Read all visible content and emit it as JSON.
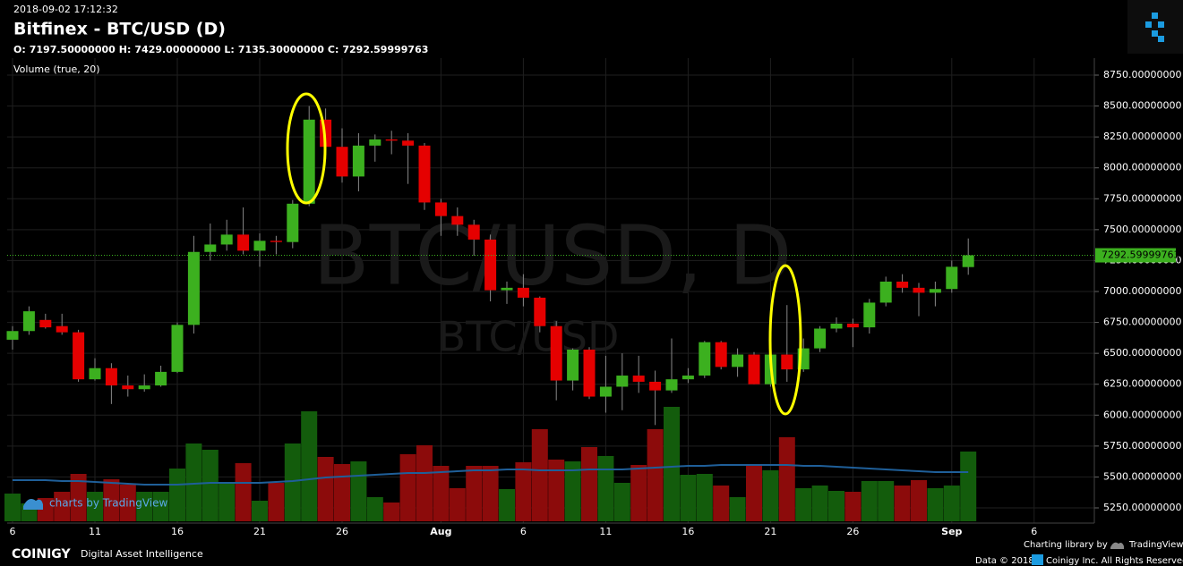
{
  "header": {
    "timestamp": "2018-09-02 17:12:32",
    "title": "Bitfinex - BTC/USD (D)",
    "ohlc": [
      {
        "key": "O:",
        "label": "7197.50000000"
      },
      {
        "key": "H:",
        "label": "7429.00000000"
      },
      {
        "key": "L:",
        "label": "7135.30000000"
      },
      {
        "key": "C:",
        "label": "7292.59999763"
      }
    ],
    "volume_label": "Volume (true, 20)"
  },
  "chart_data": {
    "type": "candlestick",
    "watermark": "BTC/USD, D",
    "watermark_sub": "BTC/USD",
    "categories": [
      "6",
      null,
      null,
      null,
      null,
      "11",
      null,
      null,
      null,
      null,
      "16",
      null,
      null,
      null,
      null,
      "21",
      null,
      null,
      null,
      null,
      "26",
      null,
      null,
      null,
      null,
      null,
      "Aug",
      null,
      null,
      null,
      null,
      "6",
      null,
      null,
      null,
      null,
      "11",
      null,
      null,
      null,
      null,
      "16",
      null,
      null,
      null,
      null,
      "21",
      null,
      null,
      null,
      null,
      "26",
      null,
      null,
      null,
      null,
      null,
      "Sep",
      null,
      null,
      null,
      null,
      "6"
    ],
    "open": [
      6610,
      6680,
      6770,
      6720,
      6670,
      6290,
      6380,
      6240,
      6210,
      6240,
      6350,
      6730,
      7320,
      7380,
      7460,
      7330,
      7410,
      7400,
      7710,
      8390,
      8170,
      7930,
      8180,
      8230,
      8220,
      8180,
      7720,
      7610,
      7540,
      7420,
      7010,
      7030,
      6950,
      6720,
      6280,
      6530,
      6150,
      6230,
      6320,
      6270,
      6200,
      6290,
      6320,
      6590,
      6390,
      6490,
      6250,
      6490,
      6370,
      6540,
      6700,
      6740,
      6710,
      6910,
      7080,
      7030,
      6990,
      7020,
      7197.5,
      null,
      null,
      null,
      null
    ],
    "high": [
      6720,
      6880,
      6820,
      6820,
      6690,
      6460,
      6420,
      6320,
      6330,
      6400,
      6750,
      7450,
      7550,
      7580,
      7680,
      7470,
      7450,
      7740,
      8500,
      8480,
      8320,
      8280,
      8270,
      8300,
      8280,
      8200,
      7750,
      7680,
      7580,
      7460,
      7080,
      7140,
      6960,
      6760,
      6540,
      6550,
      6480,
      6500,
      6480,
      6360,
      6620,
      6380,
      6600,
      6600,
      6540,
      6510,
      6520,
      6890,
      6620,
      6720,
      6790,
      6780,
      6940,
      7120,
      7140,
      7070,
      7080,
      7250,
      7429,
      null,
      null,
      null,
      null
    ],
    "low": [
      6530,
      6650,
      6700,
      6650,
      6270,
      6280,
      6090,
      6150,
      6190,
      6230,
      6340,
      6660,
      7250,
      7330,
      7300,
      7200,
      7300,
      7350,
      7690,
      8070,
      7880,
      7810,
      8050,
      8110,
      7870,
      7660,
      7450,
      7450,
      7290,
      6920,
      6900,
      6880,
      6670,
      6120,
      6200,
      6130,
      6020,
      6040,
      6180,
      5920,
      6180,
      6260,
      6300,
      6370,
      6310,
      6250,
      6230,
      6270,
      6350,
      6510,
      6670,
      6550,
      6660,
      6880,
      6990,
      6800,
      6880,
      6990,
      7135.3,
      null,
      null,
      null,
      null
    ],
    "close": [
      6680,
      6840,
      6710,
      6670,
      6290,
      6380,
      6240,
      6210,
      6240,
      6350,
      6730,
      7320,
      7380,
      7460,
      7330,
      7410,
      7400,
      7710,
      8390,
      8170,
      7930,
      8180,
      8230,
      8220,
      8180,
      7720,
      7610,
      7540,
      7420,
      7010,
      7030,
      6950,
      6720,
      6280,
      6530,
      6150,
      6230,
      6320,
      6270,
      6200,
      6290,
      6320,
      6590,
      6390,
      6490,
      6250,
      6490,
      6370,
      6540,
      6700,
      6740,
      6710,
      6910,
      7080,
      7030,
      6990,
      7020,
      7200,
      7292.59999763,
      null,
      null,
      null,
      null
    ],
    "volume": [
      31,
      20,
      26,
      33,
      53,
      33,
      47,
      41,
      33,
      33,
      59,
      87,
      80,
      43,
      65,
      23,
      43,
      87,
      123,
      72,
      64,
      67,
      27,
      21,
      75,
      85,
      62,
      37,
      62,
      62,
      36,
      66,
      103,
      69,
      67,
      83,
      73,
      43,
      63,
      103,
      128,
      52,
      53,
      40,
      27,
      63,
      57,
      94,
      37,
      40,
      34,
      33,
      45,
      45,
      40,
      46,
      37,
      40,
      78,
      null,
      null,
      null,
      null
    ],
    "volume_ma": [
      46,
      46,
      46,
      45,
      45,
      44,
      43,
      42,
      41,
      41,
      41,
      42,
      43,
      43,
      43,
      43,
      44,
      45,
      47,
      49,
      50,
      51,
      52,
      53,
      54,
      54,
      55,
      56,
      57,
      57,
      58,
      58,
      57,
      57,
      57,
      58,
      58,
      58,
      59,
      60,
      61,
      62,
      62,
      63,
      63,
      63,
      63,
      63,
      62,
      62,
      61,
      60,
      59,
      58,
      57,
      56,
      55,
      55,
      55,
      null,
      null,
      null,
      null
    ],
    "vlim": [
      0,
      200
    ],
    "ylim": [
      5250,
      8750
    ],
    "yticks": [
      {
        "value": 5250,
        "label": "5250.00000000"
      },
      {
        "value": 5500,
        "label": "5500.00000000"
      },
      {
        "value": 5750,
        "label": "5750.00000000"
      },
      {
        "value": 6000,
        "label": "6000.00000000"
      },
      {
        "value": 6250,
        "label": "6250.00000000"
      },
      {
        "value": 6500,
        "label": "6500.00000000"
      },
      {
        "value": 6750,
        "label": "6750.00000000"
      },
      {
        "value": 7000,
        "label": "7000.00000000"
      },
      {
        "value": 7250,
        "label": "7250.00000000"
      },
      {
        "value": 7500,
        "label": "7500.00000000"
      },
      {
        "value": 7750,
        "label": "7750.00000000"
      },
      {
        "value": 8000,
        "label": "8000.00000000"
      },
      {
        "value": 8250,
        "label": "8250.00000000"
      },
      {
        "value": 8500,
        "label": "8500.00000000"
      },
      {
        "value": 8750,
        "label": "8750.00000000"
      }
    ],
    "grid": true,
    "up_color": "#3cb01f",
    "down_color": "#e50000",
    "volume_up_color": "#135c0c",
    "volume_down_color": "#8c0b0b",
    "volume_ma_color": "#1f5f99",
    "last_price_color": "#3cb01f"
  },
  "footer": {
    "watermark_link": "charts by TradingView",
    "brand": "COINIGY",
    "tagline": "Digital Asset Intelligence",
    "library": "Charting library by",
    "library_name": "TradingView",
    "data_note": "Data © 2018",
    "rights": "Coinigy Inc. All Rights Reserved"
  }
}
